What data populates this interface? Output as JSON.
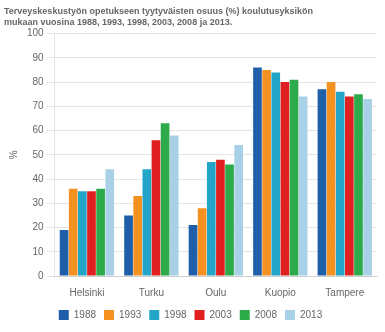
{
  "chart_data": {
    "type": "bar",
    "title": "Terveyskeskustyön opetukseen tyytyväisten osuus (%) koulutusyksikön\nmukaan vuosina 1988, 1993, 1998, 2003, 2008 ja 2013.",
    "y_label": "%",
    "categories": [
      "Helsinki",
      "Turku",
      "Oulu",
      "Kuopio",
      "Tampere"
    ],
    "series": [
      {
        "name": "1988",
        "color": "#1f5ea8",
        "values": [
          19,
          25,
          21,
          86,
          77
        ]
      },
      {
        "name": "1993",
        "color": "#f59120",
        "values": [
          36,
          33,
          28,
          85,
          80
        ]
      },
      {
        "name": "1998",
        "color": "#22a5c6",
        "values": [
          35,
          44,
          47,
          84,
          76
        ]
      },
      {
        "name": "2003",
        "color": "#e02020",
        "values": [
          35,
          56,
          48,
          80,
          74
        ]
      },
      {
        "name": "2008",
        "color": "#2daa4a",
        "values": [
          36,
          63,
          46,
          81,
          75
        ]
      },
      {
        "name": "2013",
        "color": "#a8d0e6",
        "values": [
          44,
          58,
          54,
          74,
          73
        ]
      }
    ],
    "ylim": [
      0,
      100
    ],
    "yticks": [
      0,
      10,
      20,
      30,
      40,
      50,
      60,
      70,
      80,
      90,
      100
    ],
    "grid": true,
    "legend": "bottom"
  }
}
